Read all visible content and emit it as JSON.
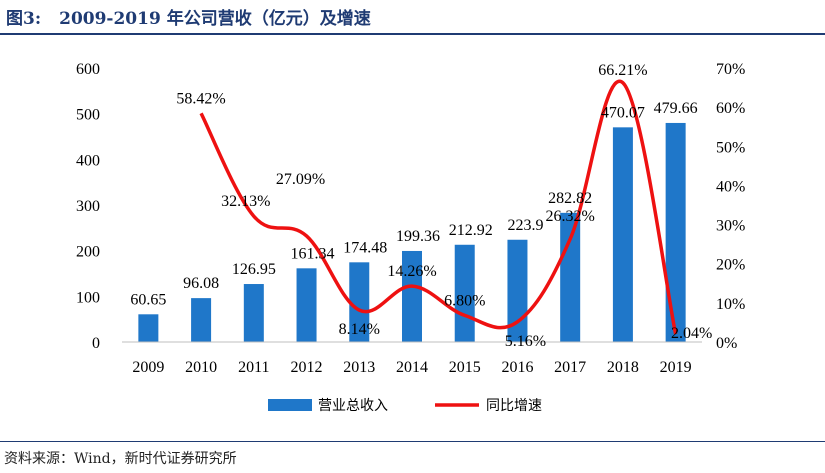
{
  "figure": {
    "label": "图3:",
    "title": "2009-2019 年公司营收（亿元）及增速",
    "source": "资料来源：Wind，新时代证券研究所"
  },
  "colors": {
    "bar": "#1f77c9",
    "line": "#ee1111",
    "title": "#1f3b73"
  },
  "chart_data": {
    "type": "bar+line",
    "categories": [
      "2009",
      "2010",
      "2011",
      "2012",
      "2013",
      "2014",
      "2015",
      "2016",
      "2017",
      "2018",
      "2019"
    ],
    "series": [
      {
        "name": "营业总收入",
        "type": "bar",
        "axis": "left",
        "values": [
          60.65,
          96.08,
          126.95,
          161.34,
          174.48,
          199.36,
          212.92,
          223.9,
          282.82,
          470.07,
          479.66
        ],
        "labels": [
          "60.65",
          "96.08",
          "126.95",
          "161.34",
          "174.48",
          "199.36",
          "212.92",
          "223.9",
          "282.82",
          "470.07",
          "479.66"
        ]
      },
      {
        "name": "同比增速",
        "type": "line",
        "axis": "right",
        "values": [
          null,
          58.42,
          32.13,
          27.09,
          8.14,
          14.26,
          6.8,
          5.16,
          26.32,
          66.21,
          2.04
        ],
        "labels": [
          "",
          "58.42%",
          "32.13%",
          "27.09%",
          "8.14%",
          "14.26%",
          "6.80%",
          "5.16%",
          "26.32%",
          "66.21%",
          "2.04%"
        ]
      }
    ],
    "y_left": {
      "min": 0,
      "max": 600,
      "step": 100,
      "ticks": [
        "0",
        "100",
        "200",
        "300",
        "400",
        "500",
        "600"
      ]
    },
    "y_right": {
      "min": 0,
      "max": 70,
      "step": 10,
      "ticks": [
        "0%",
        "10%",
        "20%",
        "30%",
        "40%",
        "50%",
        "60%",
        "70%"
      ]
    },
    "legend": {
      "position": "bottom",
      "items": [
        "营业总收入",
        "同比增速"
      ]
    },
    "grid": false
  }
}
